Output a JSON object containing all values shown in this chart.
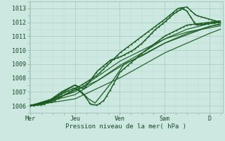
{
  "xlabel": "Pression niveau de la mer( hPa )",
  "ylim": [
    1005.5,
    1013.5
  ],
  "yticks": [
    1006,
    1007,
    1008,
    1009,
    1010,
    1011,
    1012,
    1013
  ],
  "x_days": [
    "Mer",
    "Jeu",
    "Ven",
    "Sam",
    "D"
  ],
  "x_ticks_pos": [
    0,
    1,
    2,
    3,
    4
  ],
  "xlim": [
    -0.02,
    4.3
  ],
  "bg_color": "#cce8e0",
  "grid_major_color": "#aad0c8",
  "grid_minor_color": "#bbdcd4",
  "line_color": "#1a5c20",
  "figsize": [
    3.2,
    2.0
  ],
  "dpi": 100
}
